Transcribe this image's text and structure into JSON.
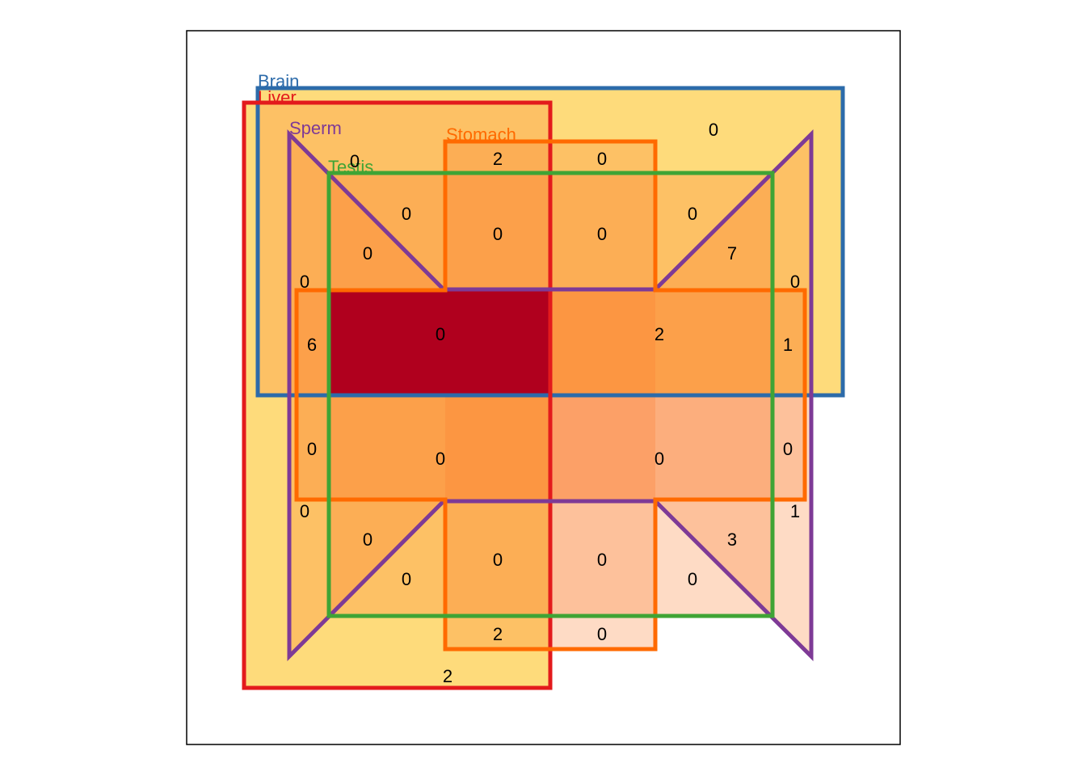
{
  "venn": {
    "colors": {
      "region_1": "#FFFF99",
      "region_2": "#FEC44F",
      "region_3": "#FB7C2E",
      "region_4": "#E8251F",
      "region_5": "#B0001E",
      "frame": "#000000"
    },
    "sets": [
      {
        "key": "brain",
        "label": "Brain",
        "color": "#2C6BAA"
      },
      {
        "key": "liver",
        "label": "Liver",
        "color": "#E31A1C"
      },
      {
        "key": "sperm",
        "label": "Sperm",
        "color": "#7E3A96"
      },
      {
        "key": "stomach",
        "label": "Stomach",
        "color": "#FF6A00"
      },
      {
        "key": "testis",
        "label": "Testis",
        "color": "#3FA435"
      }
    ],
    "counts": {
      "c01": "0",
      "c02": "2",
      "c03": "0",
      "c04": "0",
      "c05": "0",
      "c06": "0",
      "c07": "0",
      "c08": "0",
      "c09": "0",
      "c10": "7",
      "c11": "0",
      "c12": "0",
      "c13": "6",
      "c14": "0",
      "c15": "2",
      "c16": "1",
      "c17": "0",
      "c18": "0",
      "c19": "0",
      "c20": "0",
      "c21": "0",
      "c22": "1",
      "c23": "0",
      "c24": "3",
      "c25": "0",
      "c26": "0",
      "c27": "0",
      "c28": "0",
      "c29": "2",
      "c30": "0",
      "c31": "2"
    }
  }
}
